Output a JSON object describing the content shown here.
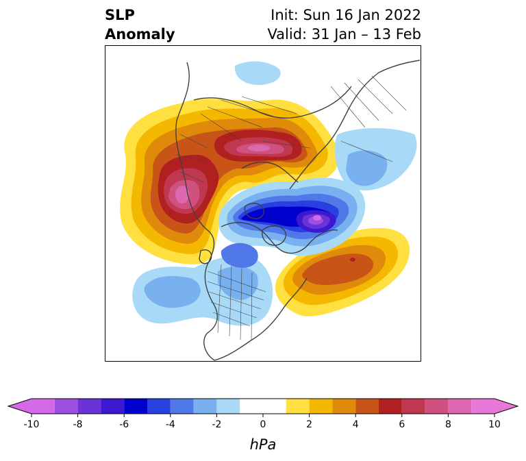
{
  "title": {
    "left_line1": "SLP",
    "left_line2": "Anomaly",
    "right_line1": "Init: Sun 16 Jan 2022",
    "right_line2": "Valid: 31 Jan – 13 Feb"
  },
  "colorbar": {
    "label": "hPa",
    "tick_labels": [
      "-10",
      "-8",
      "-6",
      "-4",
      "-2",
      "0",
      "2",
      "4",
      "6",
      "8",
      "10"
    ],
    "colors": [
      "#d56ae8",
      "#9f4fe0",
      "#6933d8",
      "#3c18d0",
      "#0000cc",
      "#2840e0",
      "#5078e8",
      "#78b0f0",
      "#a8daf8",
      "#ffffff",
      "#ffffff",
      "#ffe040",
      "#f5b800",
      "#e08a0c",
      "#c85418",
      "#b02020",
      "#c03850",
      "#d05080",
      "#dc68b0",
      "#e878d8"
    ],
    "extend": "both"
  },
  "map": {
    "projection": "north-polar-stereographic",
    "field": "SLP anomaly",
    "units": "hPa"
  }
}
